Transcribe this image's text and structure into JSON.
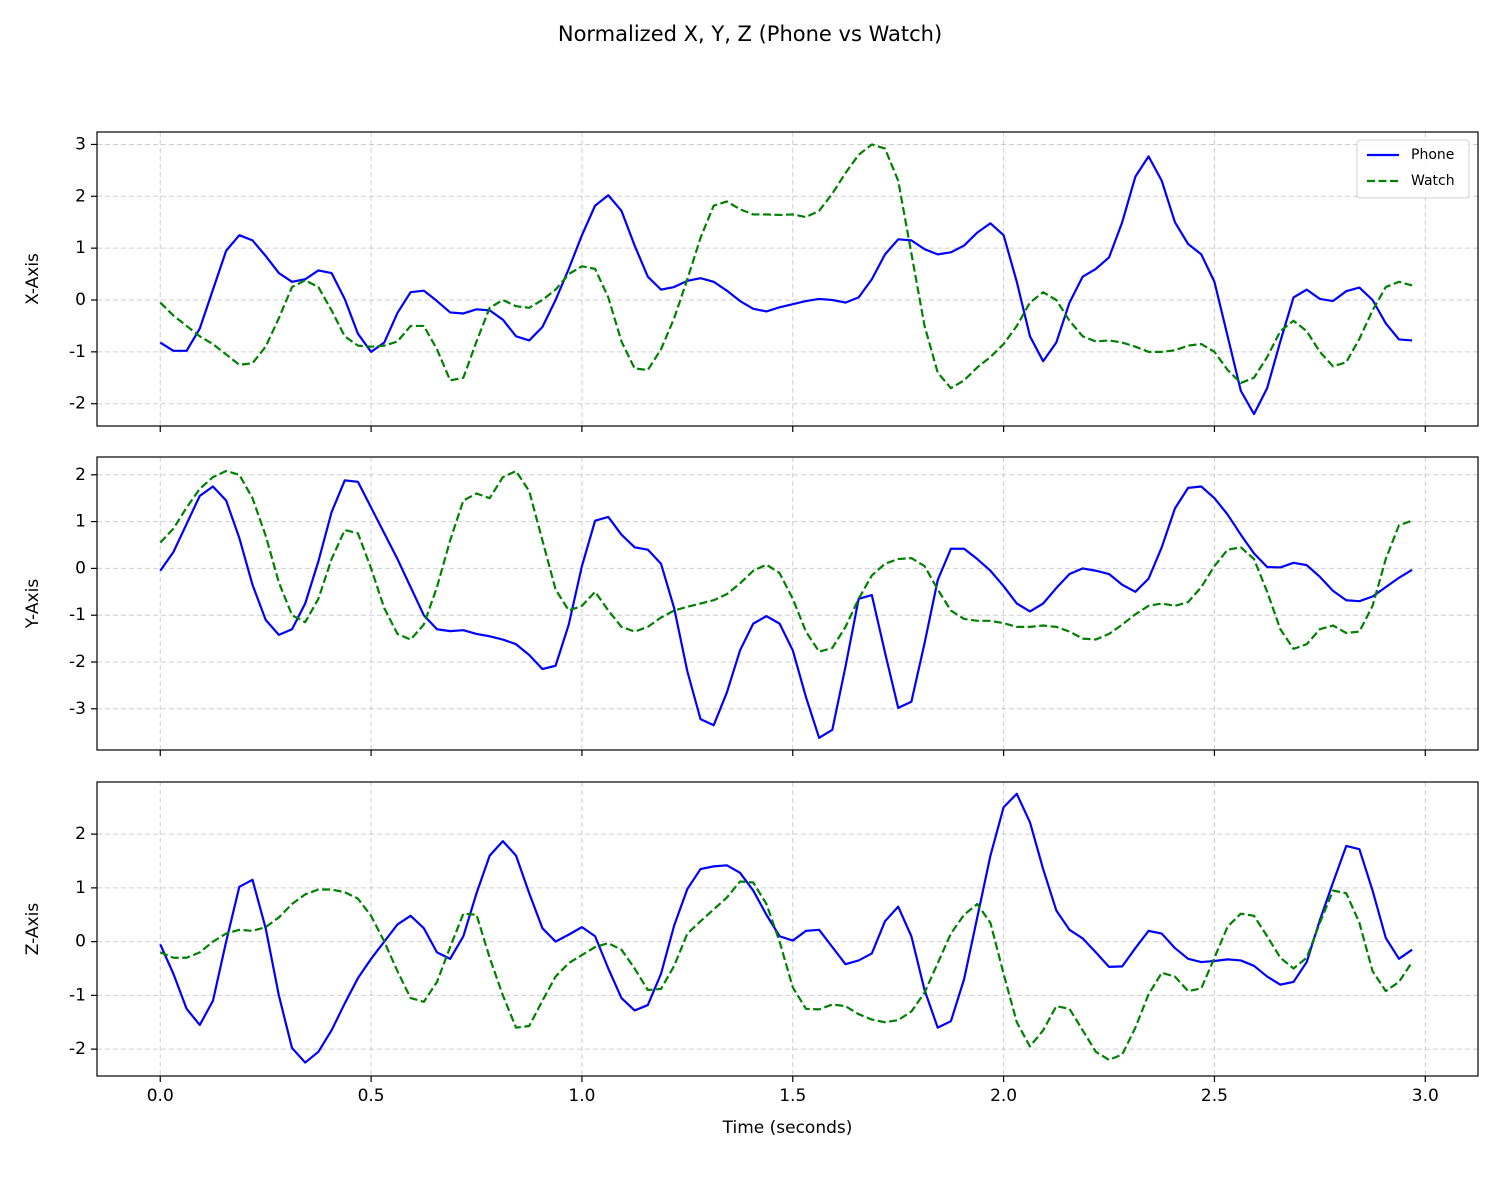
{
  "title": "Normalized X, Y, Z (Phone vs Watch)",
  "chart_data": [
    {
      "type": "line",
      "ylabel": "X-Axis",
      "legend": "upper right",
      "grid": true,
      "ylim": [
        -2.43,
        3.24
      ],
      "yticks": [
        -2,
        -1,
        0,
        1,
        2,
        3
      ],
      "x": [
        0,
        0.03125,
        0.0625,
        0.09375,
        0.125,
        0.15625,
        0.1875,
        0.21875,
        0.25,
        0.28125,
        0.3125,
        0.34375,
        0.375,
        0.40625,
        0.4375,
        0.46875,
        0.5,
        0.53125,
        0.5625,
        0.59375,
        0.625,
        0.65625,
        0.6875,
        0.71875,
        0.75,
        0.78125,
        0.8125,
        0.84375,
        0.875,
        0.90625,
        0.9375,
        0.96875,
        1,
        1.03125,
        1.0625,
        1.09375,
        1.125,
        1.15625,
        1.1875,
        1.21875,
        1.25,
        1.28125,
        1.3125,
        1.34375,
        1.375,
        1.40625,
        1.4375,
        1.46875,
        1.5,
        1.53125,
        1.5625,
        1.59375,
        1.625,
        1.65625,
        1.6875,
        1.71875,
        1.75,
        1.78125,
        1.8125,
        1.84375,
        1.875,
        1.90625,
        1.9375,
        1.96875,
        2,
        2.03125,
        2.0625,
        2.09375,
        2.125,
        2.15625,
        2.1875,
        2.21875,
        2.25,
        2.28125,
        2.3125,
        2.34375,
        2.375,
        2.40625,
        2.4375,
        2.46875,
        2.5,
        2.53125,
        2.5625,
        2.59375,
        2.625,
        2.65625,
        2.6875,
        2.71875,
        2.75,
        2.78125,
        2.8125,
        2.84375,
        2.875,
        2.90625,
        2.9375,
        2.96875
      ],
      "series": [
        {
          "name": "Phone",
          "color": "#0000ff",
          "style": "solid",
          "values": [
            -0.82,
            -0.98,
            -0.98,
            -0.55,
            0.2,
            0.95,
            1.25,
            1.15,
            0.85,
            0.52,
            0.35,
            0.4,
            0.57,
            0.52,
            0.02,
            -0.65,
            -1.0,
            -0.82,
            -0.25,
            0.15,
            0.18,
            -0.02,
            -0.24,
            -0.26,
            -0.18,
            -0.2,
            -0.38,
            -0.7,
            -0.78,
            -0.52,
            0.0,
            0.6,
            1.25,
            1.82,
            2.02,
            1.72,
            1.05,
            0.45,
            0.2,
            0.25,
            0.37,
            0.42,
            0.35,
            0.18,
            -0.02,
            -0.17,
            -0.22,
            -0.14,
            -0.08,
            -0.02,
            0.02,
            0.0,
            -0.05,
            0.05,
            0.4,
            0.88,
            1.17,
            1.15,
            0.98,
            0.88,
            0.92,
            1.05,
            1.3,
            1.48,
            1.25,
            0.35,
            -0.7,
            -1.18,
            -0.82,
            -0.05,
            0.45,
            0.6,
            0.82,
            1.5,
            2.38,
            2.77,
            2.3,
            1.5,
            1.08,
            0.88,
            0.35,
            -0.7,
            -1.75,
            -2.2,
            -1.7,
            -0.8,
            0.05,
            0.2,
            0.02,
            -0.02,
            0.17,
            0.24,
            0.0,
            -0.45,
            -0.76,
            -0.78
          ]
        },
        {
          "name": "Watch",
          "color": "#008000",
          "style": "dashed",
          "values": [
            -0.05,
            -0.3,
            -0.5,
            -0.7,
            -0.85,
            -1.05,
            -1.25,
            -1.22,
            -0.9,
            -0.35,
            0.25,
            0.38,
            0.25,
            -0.2,
            -0.7,
            -0.88,
            -0.9,
            -0.88,
            -0.8,
            -0.5,
            -0.5,
            -0.95,
            -1.55,
            -1.5,
            -0.8,
            -0.15,
            0.0,
            -0.12,
            -0.15,
            0.0,
            0.2,
            0.5,
            0.65,
            0.6,
            0.05,
            -0.8,
            -1.32,
            -1.35,
            -0.95,
            -0.35,
            0.4,
            1.2,
            1.82,
            1.9,
            1.75,
            1.65,
            1.65,
            1.64,
            1.65,
            1.6,
            1.72,
            2.05,
            2.45,
            2.8,
            3.0,
            2.92,
            2.3,
            0.9,
            -0.5,
            -1.4,
            -1.7,
            -1.55,
            -1.3,
            -1.1,
            -0.85,
            -0.5,
            -0.05,
            0.15,
            0.0,
            -0.4,
            -0.7,
            -0.8,
            -0.78,
            -0.82,
            -0.9,
            -1.0,
            -1.0,
            -0.97,
            -0.88,
            -0.85,
            -1.0,
            -1.35,
            -1.6,
            -1.5,
            -1.1,
            -0.6,
            -0.4,
            -0.6,
            -1.0,
            -1.28,
            -1.2,
            -0.75,
            -0.2,
            0.25,
            0.35,
            0.28
          ]
        }
      ]
    },
    {
      "type": "line",
      "ylabel": "Y-Axis",
      "grid": true,
      "ylim": [
        -3.88,
        2.38
      ],
      "yticks": [
        -3,
        -2,
        -1,
        0,
        1,
        2
      ],
      "x": [
        0,
        0.03125,
        0.0625,
        0.09375,
        0.125,
        0.15625,
        0.1875,
        0.21875,
        0.25,
        0.28125,
        0.3125,
        0.34375,
        0.375,
        0.40625,
        0.4375,
        0.46875,
        0.5,
        0.53125,
        0.5625,
        0.59375,
        0.625,
        0.65625,
        0.6875,
        0.71875,
        0.75,
        0.78125,
        0.8125,
        0.84375,
        0.875,
        0.90625,
        0.9375,
        0.96875,
        1,
        1.03125,
        1.0625,
        1.09375,
        1.125,
        1.15625,
        1.1875,
        1.21875,
        1.25,
        1.28125,
        1.3125,
        1.34375,
        1.375,
        1.40625,
        1.4375,
        1.46875,
        1.5,
        1.53125,
        1.5625,
        1.59375,
        1.625,
        1.65625,
        1.6875,
        1.71875,
        1.75,
        1.78125,
        1.8125,
        1.84375,
        1.875,
        1.90625,
        1.9375,
        1.96875,
        2,
        2.03125,
        2.0625,
        2.09375,
        2.125,
        2.15625,
        2.1875,
        2.21875,
        2.25,
        2.28125,
        2.3125,
        2.34375,
        2.375,
        2.40625,
        2.4375,
        2.46875,
        2.5,
        2.53125,
        2.5625,
        2.59375,
        2.625,
        2.65625,
        2.6875,
        2.71875,
        2.75,
        2.78125,
        2.8125,
        2.84375,
        2.875,
        2.90625,
        2.9375,
        2.96875
      ],
      "series": [
        {
          "color": "#0000ff",
          "style": "solid",
          "values": [
            -0.05,
            0.35,
            0.95,
            1.55,
            1.75,
            1.45,
            0.65,
            -0.35,
            -1.1,
            -1.42,
            -1.3,
            -0.75,
            0.15,
            1.2,
            1.88,
            1.85,
            1.3,
            0.75,
            0.2,
            -0.4,
            -1.0,
            -1.3,
            -1.34,
            -1.32,
            -1.4,
            -1.45,
            -1.52,
            -1.62,
            -1.85,
            -2.15,
            -2.08,
            -1.2,
            0.05,
            1.02,
            1.1,
            0.72,
            0.45,
            0.4,
            0.1,
            -0.85,
            -2.2,
            -3.22,
            -3.35,
            -2.65,
            -1.75,
            -1.18,
            -1.02,
            -1.18,
            -1.75,
            -2.75,
            -3.62,
            -3.45,
            -2.1,
            -0.65,
            -0.57,
            -1.8,
            -2.98,
            -2.85,
            -1.6,
            -0.25,
            0.42,
            0.42,
            0.2,
            -0.05,
            -0.38,
            -0.75,
            -0.92,
            -0.75,
            -0.42,
            -0.12,
            0.0,
            -0.05,
            -0.12,
            -0.35,
            -0.5,
            -0.22,
            0.45,
            1.28,
            1.72,
            1.75,
            1.5,
            1.15,
            0.72,
            0.32,
            0.03,
            0.02,
            0.12,
            0.07,
            -0.18,
            -0.48,
            -0.68,
            -0.7,
            -0.6,
            -0.4,
            -0.2,
            -0.03
          ]
        },
        {
          "color": "#008000",
          "style": "dashed",
          "values": [
            0.55,
            0.85,
            1.3,
            1.7,
            1.95,
            2.08,
            2.0,
            1.5,
            0.7,
            -0.3,
            -1.0,
            -1.15,
            -0.65,
            0.2,
            0.82,
            0.75,
            0.0,
            -0.85,
            -1.4,
            -1.52,
            -1.2,
            -0.4,
            0.6,
            1.45,
            1.6,
            1.5,
            1.95,
            2.08,
            1.65,
            0.6,
            -0.45,
            -0.9,
            -0.8,
            -0.5,
            -0.9,
            -1.25,
            -1.35,
            -1.25,
            -1.05,
            -0.9,
            -0.82,
            -0.75,
            -0.68,
            -0.55,
            -0.32,
            -0.05,
            0.08,
            -0.1,
            -0.65,
            -1.35,
            -1.78,
            -1.7,
            -1.25,
            -0.65,
            -0.15,
            0.1,
            0.2,
            0.22,
            0.05,
            -0.45,
            -0.9,
            -1.08,
            -1.12,
            -1.12,
            -1.17,
            -1.25,
            -1.25,
            -1.22,
            -1.25,
            -1.35,
            -1.5,
            -1.52,
            -1.4,
            -1.2,
            -0.98,
            -0.8,
            -0.75,
            -0.8,
            -0.72,
            -0.4,
            0.05,
            0.4,
            0.45,
            0.2,
            -0.5,
            -1.3,
            -1.72,
            -1.62,
            -1.3,
            -1.22,
            -1.38,
            -1.35,
            -0.8,
            0.2,
            0.92,
            1.02
          ]
        }
      ]
    },
    {
      "type": "line",
      "ylabel": "Z-Axis",
      "xlabel": "Time (seconds)",
      "grid": true,
      "ylim": [
        -2.5,
        2.97
      ],
      "yticks": [
        -2,
        -1,
        0,
        1,
        2
      ],
      "xlim": [
        -0.15,
        3.125
      ],
      "xticks": [
        {
          "value": 0,
          "label": "0.0"
        },
        0.5,
        {
          "value": 1,
          "label": "1.0"
        },
        1.5,
        {
          "value": 2,
          "label": "2.0"
        },
        2.5,
        {
          "value": 3,
          "label": "3.0"
        }
      ],
      "x": [
        0,
        0.03125,
        0.0625,
        0.09375,
        0.125,
        0.15625,
        0.1875,
        0.21875,
        0.25,
        0.28125,
        0.3125,
        0.34375,
        0.375,
        0.40625,
        0.4375,
        0.46875,
        0.5,
        0.53125,
        0.5625,
        0.59375,
        0.625,
        0.65625,
        0.6875,
        0.71875,
        0.75,
        0.78125,
        0.8125,
        0.84375,
        0.875,
        0.90625,
        0.9375,
        0.96875,
        1,
        1.03125,
        1.0625,
        1.09375,
        1.125,
        1.15625,
        1.1875,
        1.21875,
        1.25,
        1.28125,
        1.3125,
        1.34375,
        1.375,
        1.40625,
        1.4375,
        1.46875,
        1.5,
        1.53125,
        1.5625,
        1.59375,
        1.625,
        1.65625,
        1.6875,
        1.71875,
        1.75,
        1.78125,
        1.8125,
        1.84375,
        1.875,
        1.90625,
        1.9375,
        1.96875,
        2,
        2.03125,
        2.0625,
        2.09375,
        2.125,
        2.15625,
        2.1875,
        2.21875,
        2.25,
        2.28125,
        2.3125,
        2.34375,
        2.375,
        2.40625,
        2.4375,
        2.46875,
        2.5,
        2.53125,
        2.5625,
        2.59375,
        2.625,
        2.65625,
        2.6875,
        2.71875,
        2.75,
        2.78125,
        2.8125,
        2.84375,
        2.875,
        2.90625,
        2.9375,
        2.96875
      ],
      "series": [
        {
          "color": "#0000ff",
          "style": "solid",
          "values": [
            -0.05,
            -0.6,
            -1.25,
            -1.55,
            -1.1,
            0.0,
            1.02,
            1.15,
            0.25,
            -1.0,
            -1.98,
            -2.25,
            -2.05,
            -1.65,
            -1.15,
            -0.68,
            -0.32,
            0.0,
            0.32,
            0.48,
            0.25,
            -0.2,
            -0.32,
            0.1,
            0.9,
            1.6,
            1.87,
            1.6,
            0.9,
            0.25,
            0.0,
            0.13,
            0.27,
            0.1,
            -0.5,
            -1.05,
            -1.28,
            -1.18,
            -0.6,
            0.3,
            0.98,
            1.35,
            1.4,
            1.42,
            1.28,
            0.95,
            0.5,
            0.1,
            0.02,
            0.2,
            0.22,
            -0.1,
            -0.42,
            -0.35,
            -0.22,
            0.38,
            0.65,
            0.1,
            -0.9,
            -1.6,
            -1.48,
            -0.7,
            0.45,
            1.6,
            2.5,
            2.75,
            2.22,
            1.35,
            0.58,
            0.22,
            0.06,
            -0.2,
            -0.47,
            -0.46,
            -0.12,
            0.2,
            0.15,
            -0.12,
            -0.32,
            -0.38,
            -0.36,
            -0.33,
            -0.35,
            -0.45,
            -0.65,
            -0.8,
            -0.75,
            -0.38,
            0.4,
            1.1,
            1.78,
            1.72,
            0.95,
            0.07,
            -0.32,
            -0.15
          ]
        },
        {
          "color": "#008000",
          "style": "dashed",
          "values": [
            -0.2,
            -0.3,
            -0.3,
            -0.2,
            0.0,
            0.15,
            0.22,
            0.2,
            0.27,
            0.45,
            0.7,
            0.88,
            0.97,
            0.97,
            0.92,
            0.8,
            0.48,
            0.0,
            -0.55,
            -1.05,
            -1.12,
            -0.75,
            -0.1,
            0.52,
            0.5,
            -0.3,
            -1.0,
            -1.6,
            -1.57,
            -1.1,
            -0.65,
            -0.4,
            -0.25,
            -0.1,
            -0.03,
            -0.15,
            -0.5,
            -0.9,
            -0.88,
            -0.45,
            0.15,
            0.38,
            0.6,
            0.82,
            1.12,
            1.1,
            0.7,
            0.0,
            -0.85,
            -1.25,
            -1.26,
            -1.17,
            -1.2,
            -1.35,
            -1.45,
            -1.5,
            -1.46,
            -1.3,
            -0.95,
            -0.4,
            0.15,
            0.5,
            0.7,
            0.35,
            -0.6,
            -1.5,
            -1.95,
            -1.65,
            -1.2,
            -1.25,
            -1.65,
            -2.05,
            -2.2,
            -2.1,
            -1.6,
            -0.98,
            -0.58,
            -0.65,
            -0.92,
            -0.87,
            -0.3,
            0.28,
            0.52,
            0.48,
            0.1,
            -0.3,
            -0.5,
            -0.3,
            0.35,
            0.95,
            0.9,
            0.35,
            -0.55,
            -0.92,
            -0.75,
            -0.38
          ]
        }
      ]
    }
  ]
}
